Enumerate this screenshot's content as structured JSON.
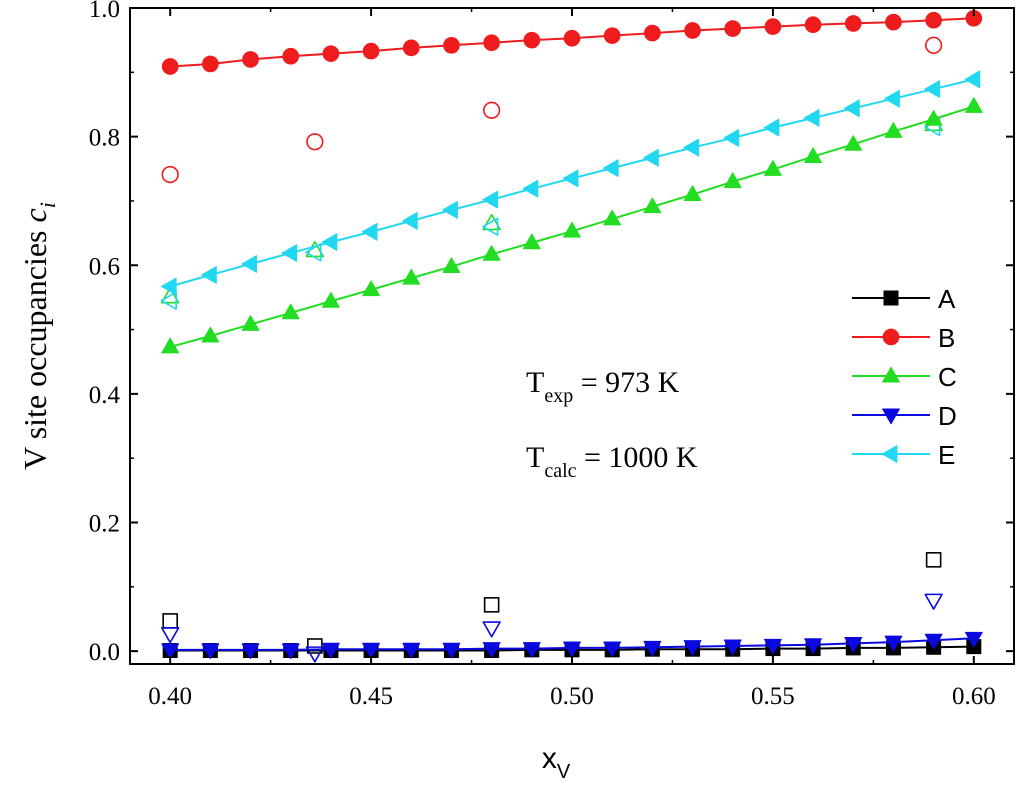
{
  "chart_data": {
    "type": "scatter",
    "ylabel_main": "V site occupancies ",
    "ylabel_var": "c",
    "ylabel_sub": "i",
    "xlabel_main": "x",
    "xlabel_sub": "V",
    "xlim": [
      0.39,
      0.61
    ],
    "ylim": [
      -0.02,
      1.0
    ],
    "xticks": [
      "0.40",
      "0.45",
      "0.50",
      "0.55",
      "0.60"
    ],
    "yticks": [
      "0.0",
      "0.2",
      "0.4",
      "0.6",
      "0.8",
      "1.0"
    ],
    "xtick_values": [
      0.4,
      0.45,
      0.5,
      0.55,
      0.6
    ],
    "ytick_values": [
      0.0,
      0.2,
      0.4,
      0.6,
      0.8,
      1.0
    ],
    "annotations": {
      "texp_main": "T",
      "texp_sub": "exp",
      "texp_value": " = 973 K",
      "tcalc_main": "T",
      "tcalc_sub": "calc",
      "tcalc_value": " = 1000 K"
    },
    "x": [
      0.4,
      0.41,
      0.42,
      0.43,
      0.44,
      0.45,
      0.46,
      0.47,
      0.48,
      0.49,
      0.5,
      0.51,
      0.52,
      0.53,
      0.54,
      0.55,
      0.56,
      0.57,
      0.58,
      0.59,
      0.6
    ],
    "series": [
      {
        "name": "A",
        "color": "#000000",
        "marker": "square",
        "values": [
          0.001,
          0.001,
          0.001,
          0.001,
          0.001,
          0.001,
          0.001,
          0.001,
          0.001,
          0.002,
          0.002,
          0.002,
          0.003,
          0.003,
          0.003,
          0.004,
          0.004,
          0.005,
          0.005,
          0.006,
          0.007
        ]
      },
      {
        "name": "B",
        "color": "#ee1c1c",
        "marker": "circle",
        "values": [
          0.909,
          0.913,
          0.92,
          0.925,
          0.929,
          0.933,
          0.938,
          0.942,
          0.946,
          0.95,
          0.953,
          0.957,
          0.961,
          0.965,
          0.968,
          0.971,
          0.974,
          0.976,
          0.978,
          0.981,
          0.984
        ]
      },
      {
        "name": "C",
        "color": "#22dd22",
        "marker": "triangle-up",
        "values": [
          0.473,
          0.49,
          0.508,
          0.526,
          0.544,
          0.562,
          0.58,
          0.598,
          0.617,
          0.635,
          0.653,
          0.672,
          0.691,
          0.71,
          0.73,
          0.749,
          0.769,
          0.788,
          0.808,
          0.827,
          0.847
        ]
      },
      {
        "name": "D",
        "color": "#0a0ae0",
        "marker": "triangle-down",
        "values": [
          0.002,
          0.002,
          0.002,
          0.002,
          0.003,
          0.003,
          0.003,
          0.003,
          0.004,
          0.004,
          0.005,
          0.005,
          0.006,
          0.007,
          0.008,
          0.009,
          0.01,
          0.012,
          0.014,
          0.017,
          0.02
        ]
      },
      {
        "name": "E",
        "color": "#22d8f0",
        "marker": "triangle-left",
        "values": [
          0.567,
          0.585,
          0.602,
          0.619,
          0.636,
          0.652,
          0.669,
          0.686,
          0.702,
          0.719,
          0.735,
          0.751,
          0.767,
          0.783,
          0.798,
          0.814,
          0.829,
          0.844,
          0.859,
          0.874,
          0.889
        ]
      }
    ],
    "experimental": [
      {
        "series": "A",
        "marker": "square-open",
        "color": "#000000",
        "points": [
          [
            0.4,
            0.047
          ],
          [
            0.436,
            0.008
          ],
          [
            0.48,
            0.072
          ],
          [
            0.59,
            0.142
          ]
        ]
      },
      {
        "series": "B",
        "marker": "circle-open",
        "color": "#ee1c1c",
        "points": [
          [
            0.4,
            0.741
          ],
          [
            0.436,
            0.792
          ],
          [
            0.48,
            0.841
          ],
          [
            0.59,
            0.942
          ]
        ]
      },
      {
        "series": "C",
        "marker": "triangle-up-open",
        "color": "#22dd22",
        "points": [
          [
            0.4,
            0.551
          ],
          [
            0.436,
            0.623
          ],
          [
            0.48,
            0.665
          ],
          [
            0.59,
            0.819
          ]
        ]
      },
      {
        "series": "D",
        "marker": "triangle-down-open",
        "color": "#0a0ae0",
        "points": [
          [
            0.4,
            0.027
          ],
          [
            0.436,
            -0.003
          ],
          [
            0.48,
            0.036
          ],
          [
            0.59,
            0.079
          ]
        ]
      },
      {
        "series": "E",
        "marker": "triangle-left-open",
        "color": "#22d8f0",
        "points": [
          [
            0.4,
            0.545
          ],
          [
            0.436,
            0.62
          ],
          [
            0.48,
            0.66
          ],
          [
            0.59,
            0.815
          ]
        ]
      }
    ],
    "legend": {
      "position": "right",
      "entries": [
        "A",
        "B",
        "C",
        "D",
        "E"
      ]
    }
  }
}
